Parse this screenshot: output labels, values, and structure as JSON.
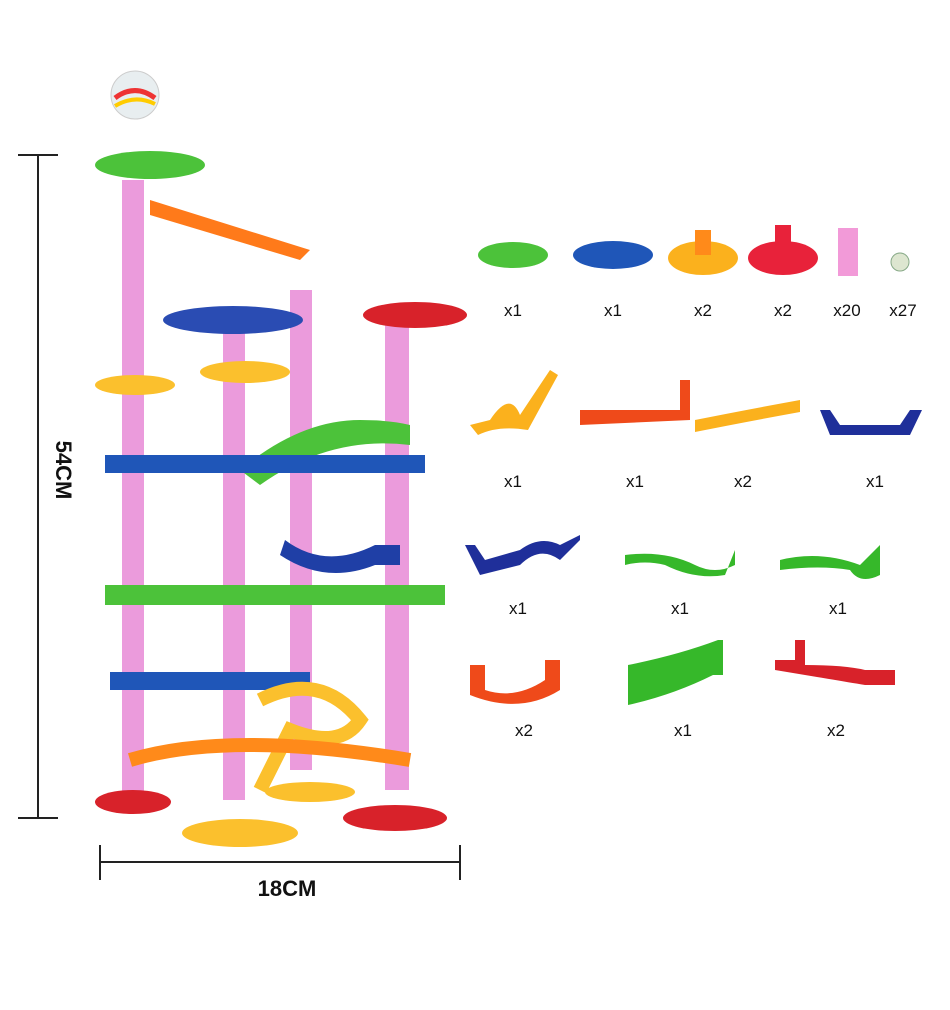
{
  "dimensions": {
    "height": "54CM",
    "width": "18CM"
  },
  "parts": [
    [
      "x1",
      "x1",
      "x2",
      "x2",
      "x20",
      "x27"
    ],
    [
      "x1",
      "x1",
      "x2",
      "x1"
    ],
    [
      "x1",
      "x1",
      "x1"
    ],
    [
      "x2",
      "x1",
      "x2"
    ]
  ]
}
